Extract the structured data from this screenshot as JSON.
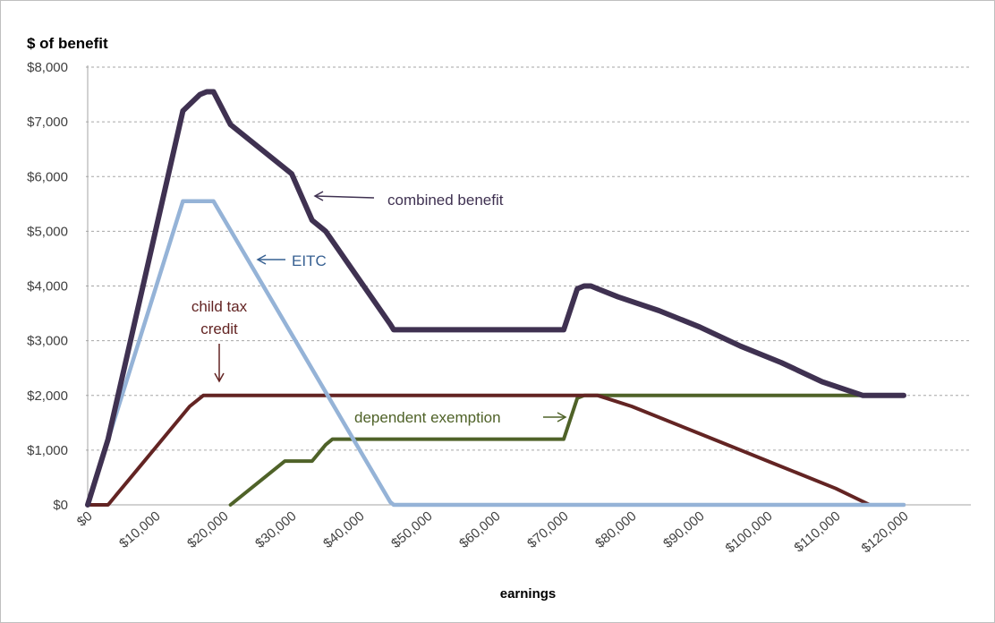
{
  "chart_data": {
    "type": "line",
    "title": "",
    "ylabel": "$ of benefit",
    "xlabel": "earnings",
    "xlim": [
      0,
      120000
    ],
    "ylim": [
      0,
      8000
    ],
    "grid": true,
    "legend": "inline annotations",
    "x_tick_labels": [
      "$0",
      "$10,000",
      "$20,000",
      "$30,000",
      "$40,000",
      "$50,000",
      "$60,000",
      "$70,000",
      "$80,000",
      "$90,000",
      "$100,000",
      "$110,000",
      "$120,000"
    ],
    "x_ticks": [
      0,
      10000,
      20000,
      30000,
      40000,
      50000,
      60000,
      70000,
      80000,
      90000,
      100000,
      110000,
      120000
    ],
    "y_tick_labels": [
      "$0",
      "$1,000",
      "$2,000",
      "$3,000",
      "$4,000",
      "$5,000",
      "$6,000",
      "$7,000",
      "$8,000"
    ],
    "y_ticks": [
      0,
      1000,
      2000,
      3000,
      4000,
      5000,
      6000,
      7000,
      8000
    ],
    "series": [
      {
        "name": "combined benefit",
        "color": "#3f3151",
        "x": [
          0,
          3000,
          14000,
          16500,
          17500,
          18500,
          21000,
          30000,
          33000,
          35000,
          44500,
          45000,
          70000,
          72000,
          73000,
          74000,
          75000,
          78000,
          84000,
          90000,
          96000,
          102000,
          108000,
          114000,
          120000
        ],
        "values": [
          0,
          1200,
          7200,
          7500,
          7550,
          7550,
          6950,
          6050,
          5200,
          5000,
          3300,
          3200,
          3200,
          3950,
          4000,
          4000,
          3950,
          3800,
          3550,
          3250,
          2900,
          2600,
          2250,
          2000,
          2000
        ]
      },
      {
        "name": "EITC",
        "color": "#95b3d7",
        "x": [
          0,
          14000,
          18500,
          44500,
          45000,
          120000
        ],
        "values": [
          0,
          5550,
          5550,
          50,
          0,
          0
        ]
      },
      {
        "name": "child tax credit",
        "color": "#632423",
        "x": [
          0,
          3000,
          8000,
          12000,
          15000,
          17000,
          73000,
          75000,
          80000,
          90000,
          100000,
          110000,
          115000,
          120000
        ],
        "values": [
          0,
          0,
          750,
          1350,
          1800,
          2000,
          2000,
          2000,
          1800,
          1300,
          800,
          300,
          0,
          0
        ]
      },
      {
        "name": "dependent exemption",
        "color": "#4f6228",
        "x": [
          21000,
          26000,
          29000,
          33000,
          35000,
          36000,
          70000,
          72000,
          73000,
          120000
        ],
        "values": [
          0,
          500,
          800,
          800,
          1100,
          1200,
          1200,
          1950,
          2000,
          2000
        ]
      }
    ],
    "annotations": [
      {
        "text": "combined benefit",
        "color": "#3f3151",
        "arrow_to": "combined benefit"
      },
      {
        "text": "EITC",
        "color": "#376092",
        "arrow_to": "EITC"
      },
      {
        "text": "child tax",
        "color": "#632423",
        "arrow_to": "child tax credit"
      },
      {
        "text": "credit",
        "color": "#632423",
        "arrow_to": "child tax credit"
      },
      {
        "text": "dependent exemption",
        "color": "#4f6228",
        "arrow_to": "dependent exemption"
      }
    ]
  }
}
